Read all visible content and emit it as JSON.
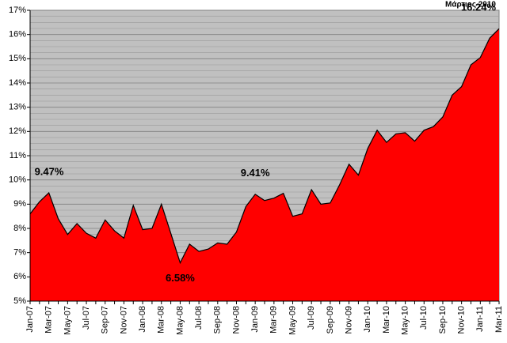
{
  "chart_data": {
    "type": "area",
    "annotation": "Μάρτιος 2010",
    "categories": [
      "Jan-07",
      null,
      "Mar-07",
      null,
      "May-07",
      null,
      "Jul-07",
      null,
      "Sep-07",
      null,
      "Nov-07",
      null,
      "Jan-08",
      null,
      "Mar-08",
      null,
      "May-08",
      null,
      "Jul-08",
      null,
      "Sep-08",
      null,
      "Nov-08",
      null,
      "Jan-09",
      null,
      "Mar-09",
      null,
      "May-09",
      null,
      "Jul-09",
      null,
      "Sep-09",
      null,
      "Nov-09",
      null,
      "Jan-10",
      null,
      "Mar-10",
      null,
      "May-10",
      null,
      "Jul-10",
      null,
      "Sep-10",
      null,
      "Nov-10",
      null,
      "Jan-11",
      null,
      "Mar-11"
    ],
    "values": [
      8.6,
      9.1,
      9.47,
      8.4,
      7.75,
      8.2,
      7.8,
      7.6,
      8.35,
      7.9,
      7.6,
      8.95,
      7.95,
      8.0,
      9.0,
      7.8,
      6.58,
      7.35,
      7.05,
      7.15,
      7.4,
      7.35,
      7.85,
      8.9,
      9.41,
      9.15,
      9.25,
      9.45,
      8.5,
      8.6,
      9.6,
      9.0,
      9.05,
      9.8,
      10.65,
      10.2,
      11.3,
      12.05,
      11.55,
      11.9,
      11.95,
      11.6,
      12.05,
      12.2,
      12.6,
      13.5,
      13.85,
      14.75,
      15.05,
      15.85,
      16.24
    ],
    "value_labels": [
      null,
      null,
      "9.47%",
      null,
      null,
      null,
      null,
      null,
      null,
      null,
      null,
      null,
      null,
      null,
      null,
      null,
      "6.58%",
      null,
      null,
      null,
      null,
      null,
      null,
      null,
      "9.41%",
      null,
      null,
      null,
      null,
      null,
      null,
      null,
      null,
      null,
      null,
      null,
      null,
      null,
      null,
      null,
      null,
      null,
      null,
      null,
      null,
      null,
      null,
      null,
      null,
      null,
      "16.24%"
    ],
    "color": "#ff0000",
    "line_color": "#000000",
    "plot_background": "#c0c0c0",
    "ylim": [
      5,
      17
    ],
    "yticks": [
      {
        "value": 5,
        "label": "5%"
      },
      {
        "value": 6,
        "label": "6%"
      },
      {
        "value": 7,
        "label": "7%"
      },
      {
        "value": 8,
        "label": "8%"
      },
      {
        "value": 9,
        "label": "9%"
      },
      {
        "value": 10,
        "label": "10%"
      },
      {
        "value": 11,
        "label": "11%"
      },
      {
        "value": 12,
        "label": "12%"
      },
      {
        "value": 13,
        "label": "13%"
      },
      {
        "value": 14,
        "label": "14%"
      },
      {
        "value": 15,
        "label": "15%"
      },
      {
        "value": 16,
        "label": "16%"
      },
      {
        "value": 17,
        "label": "17%"
      }
    ],
    "grid": true
  }
}
